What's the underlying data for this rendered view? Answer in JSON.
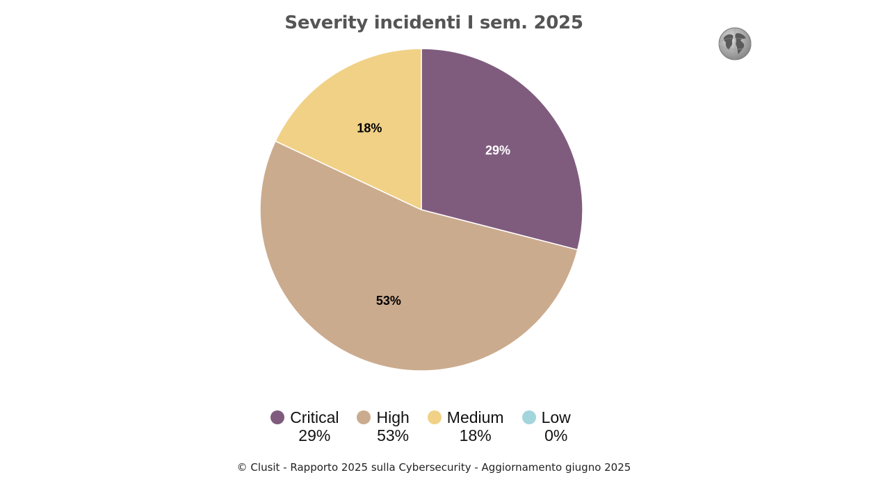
{
  "chart_data": {
    "type": "pie",
    "title": "Severity incidenti I sem. 2025",
    "slices": [
      {
        "name": "Critical",
        "value": 29,
        "label": "29%",
        "color": "#7f5c7e",
        "label_color": "#ffffff"
      },
      {
        "name": "High",
        "value": 53,
        "label": "53%",
        "color": "#cbab8e",
        "label_color": "#000000"
      },
      {
        "name": "Medium",
        "value": 18,
        "label": "18%",
        "color": "#f0d186",
        "label_color": "#000000"
      },
      {
        "name": "Low",
        "value": 0,
        "label": "0%",
        "color": "#a3d5dc",
        "label_color": "#000000"
      }
    ],
    "legend": "bottom"
  },
  "footer": "© Clusit - Rapporto 2025 sulla Cybersecurity - Aggiornamento giugno 2025",
  "logo": {
    "icon": "globe-icon"
  }
}
